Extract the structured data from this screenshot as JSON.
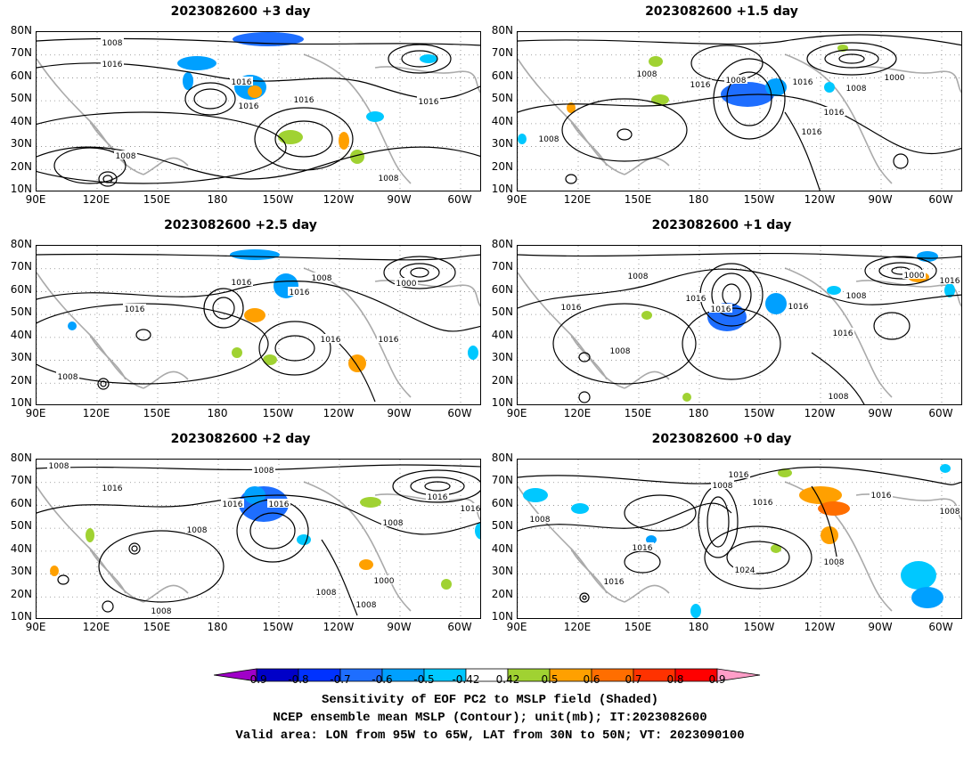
{
  "panels": [
    {
      "title": "2023082600 +3 day",
      "contour_labels": [
        "1008",
        "1016",
        "1016",
        "1016",
        "1016",
        "1016",
        "1008",
        "1008"
      ]
    },
    {
      "title": "2023082600 +1.5 day",
      "contour_labels": [
        "1008",
        "1016",
        "1008",
        "1016",
        "1008",
        "1000",
        "1016",
        "1016",
        "1008"
      ]
    },
    {
      "title": "2023082600 +2.5 day",
      "contour_labels": [
        "1016",
        "1016",
        "1008",
        "1000",
        "1016",
        "1016",
        "1016",
        "1008"
      ]
    },
    {
      "title": "2023082600 +1 day",
      "contour_labels": [
        "1008",
        "1016",
        "1016",
        "1008",
        "1016",
        "1000",
        "1016",
        "1016",
        "1008",
        "1008",
        "1016"
      ]
    },
    {
      "title": "2023082600 +2 day",
      "contour_labels": [
        "1008",
        "1016",
        "1008",
        "1016",
        "1016",
        "1008",
        "1008",
        "1000",
        "1016",
        "1016",
        "1008",
        "1008",
        "1008"
      ]
    },
    {
      "title": "2023082600 +0 day",
      "contour_labels": [
        "1008",
        "1016",
        "1008",
        "1016",
        "1016",
        "1008",
        "1016",
        "1008",
        "1016",
        "1024"
      ]
    }
  ],
  "axes": {
    "y_ticks": [
      "80N",
      "70N",
      "60N",
      "50N",
      "40N",
      "30N",
      "20N",
      "10N"
    ],
    "x_ticks": [
      "90E",
      "120E",
      "150E",
      "180",
      "150W",
      "120W",
      "90W",
      "60W"
    ]
  },
  "colorbar": {
    "labels": [
      "-0.9",
      "-0.8",
      "-0.7",
      "-0.6",
      "-0.5",
      "-0.42",
      "0.42",
      "0.5",
      "0.6",
      "0.7",
      "0.8",
      "0.9"
    ],
    "colors": [
      "#a000c8",
      "#0000c8",
      "#0032ff",
      "#1e6eff",
      "#00a0ff",
      "#00c8ff",
      "#ffffff",
      "#a0d232",
      "#ffa000",
      "#ff6e00",
      "#ff3200",
      "#ff0000",
      "#ff9ec8"
    ]
  },
  "caption": {
    "line1": "Sensitivity of EOF PC2 to MSLP field (Shaded)",
    "line2": "NCEP ensemble mean MSLP (Contour); unit(mb); IT:2023082600",
    "line3": "Valid area: LON from 95W to 65W, LAT from 30N to 50N; VT: 2023090100"
  }
}
